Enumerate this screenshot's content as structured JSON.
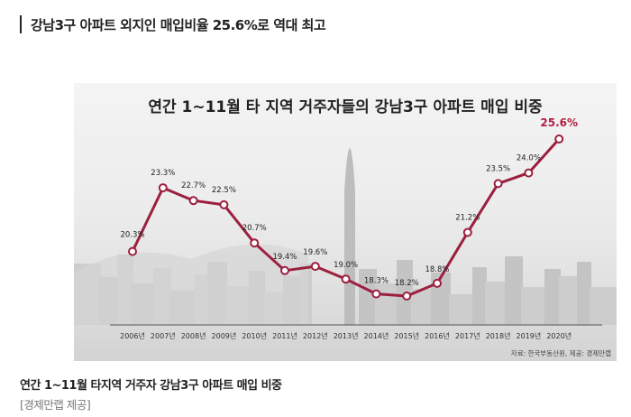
{
  "headline": "강남3구 아파트 외지인 매입비율 25.6%로 역대 최고",
  "caption": "연간 1~11월 타지역 거주자 강남3구 아파트 매입 비중",
  "credit": "[경제만랩 제공]",
  "chart_data": {
    "type": "line",
    "title": "연간 1~11월 타 지역 거주자들의 강남3구 아파트 매입 비중",
    "categories": [
      "2006년",
      "2007년",
      "2008년",
      "2009년",
      "2010년",
      "2011년",
      "2012년",
      "2013년",
      "2014년",
      "2015년",
      "2016년",
      "2017년",
      "2018년",
      "2019년",
      "2020년"
    ],
    "series": [
      {
        "values": [
          20.3,
          23.3,
          22.7,
          22.5,
          20.7,
          19.4,
          19.6,
          19.0,
          18.3,
          18.2,
          18.8,
          21.2,
          23.5,
          24.0,
          25.6
        ]
      }
    ],
    "data_labels": [
      "20.3%",
      "23.3%",
      "22.7%",
      "22.5%",
      "20.7%",
      "19.4%",
      "19.6%",
      "19.0%",
      "18.3%",
      "18.2%",
      "18.8%",
      "21.2%",
      "23.5%",
      "24.0%",
      "25.6%"
    ],
    "source": "자료: 한국부동산원, 제공: 경제만랩",
    "line_color": "#9c1f3e",
    "highlight_color": "#b01e40"
  }
}
